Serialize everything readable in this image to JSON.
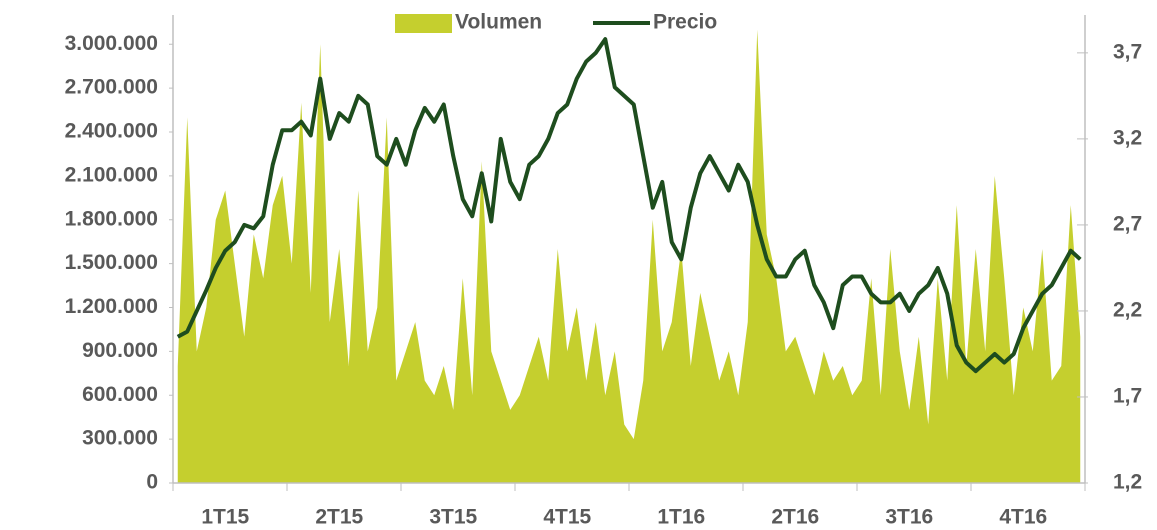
{
  "chart_data": {
    "type": "area-line",
    "categories": [
      null,
      null,
      null,
      null,
      null,
      null,
      "1T15",
      null,
      null,
      null,
      null,
      null,
      null,
      null,
      null,
      null,
      null,
      null,
      "2T15",
      null,
      null,
      null,
      null,
      null,
      null,
      null,
      null,
      null,
      null,
      null,
      "3T15",
      null,
      null,
      null,
      null,
      null,
      null,
      null,
      null,
      null,
      null,
      null,
      "4T15",
      null,
      null,
      null,
      null,
      null,
      null,
      null,
      null,
      null,
      null,
      null,
      "1T16",
      null,
      null,
      null,
      null,
      null,
      null,
      null,
      null,
      null,
      null,
      null,
      "2T16",
      null,
      null,
      null,
      null,
      null,
      null,
      null,
      null,
      null,
      null,
      null,
      "3T16",
      null,
      null,
      null,
      null,
      null,
      null,
      null,
      null,
      null,
      null,
      null,
      "4T16",
      null,
      null,
      null,
      null,
      null
    ],
    "series": [
      {
        "name": "Volumen",
        "color": "#c5cf2e",
        "values": [
          800000,
          2500000,
          900000,
          1200000,
          1800000,
          2000000,
          1500000,
          1000000,
          1700000,
          1400000,
          1900000,
          2100000,
          1500000,
          2600000,
          1300000,
          3000000,
          1100000,
          1600000,
          800000,
          2000000,
          900000,
          1200000,
          2500000,
          700000,
          900000,
          1100000,
          700000,
          600000,
          800000,
          500000,
          1400000,
          600000,
          2200000,
          900000,
          700000,
          500000,
          600000,
          800000,
          1000000,
          700000,
          1600000,
          900000,
          1200000,
          700000,
          1100000,
          600000,
          900000,
          400000,
          300000,
          700000,
          1800000,
          900000,
          1100000,
          1600000,
          800000,
          1300000,
          1000000,
          700000,
          900000,
          600000,
          1100000,
          3100000,
          1700000,
          1400000,
          900000,
          1000000,
          800000,
          600000,
          900000,
          700000,
          800000,
          600000,
          700000,
          1400000,
          600000,
          1600000,
          900000,
          500000,
          1000000,
          400000,
          1400000,
          700000,
          1900000,
          800000,
          1600000,
          900000,
          2100000,
          1400000,
          600000,
          1200000,
          900000,
          1600000,
          700000,
          800000,
          1900000,
          1000000
        ]
      },
      {
        "name": "Precio",
        "color": "#1e4d1e",
        "axis": "y2",
        "values": [
          2.05,
          2.08,
          2.2,
          2.32,
          2.45,
          2.55,
          2.6,
          2.7,
          2.68,
          2.75,
          3.05,
          3.25,
          3.25,
          3.3,
          3.22,
          3.55,
          3.2,
          3.35,
          3.3,
          3.45,
          3.4,
          3.1,
          3.05,
          3.2,
          3.05,
          3.25,
          3.38,
          3.3,
          3.4,
          3.1,
          2.85,
          2.75,
          3.0,
          2.72,
          3.2,
          2.95,
          2.85,
          3.05,
          3.1,
          3.2,
          3.35,
          3.4,
          3.55,
          3.65,
          3.7,
          3.78,
          3.5,
          3.45,
          3.4,
          3.1,
          2.8,
          2.95,
          2.6,
          2.5,
          2.8,
          3.0,
          3.1,
          3.0,
          2.9,
          3.05,
          2.95,
          2.7,
          2.5,
          2.4,
          2.4,
          2.5,
          2.55,
          2.35,
          2.25,
          2.1,
          2.35,
          2.4,
          2.4,
          2.3,
          2.25,
          2.25,
          2.3,
          2.2,
          2.3,
          2.35,
          2.45,
          2.3,
          2.0,
          1.9,
          1.85,
          1.9,
          1.95,
          1.9,
          1.95,
          2.1,
          2.2,
          2.3,
          2.35,
          2.45,
          2.55,
          2.5
        ]
      }
    ],
    "ylim": [
      0,
      3200000
    ],
    "yticks": [
      0,
      {
        "value": 300000,
        "label": "300.000"
      },
      {
        "value": 600000,
        "label": "600.000"
      },
      {
        "value": 900000,
        "label": "900.000"
      },
      {
        "value": 1200000,
        "label": "1.200.000"
      },
      {
        "value": 1500000,
        "label": "1.500.000"
      },
      {
        "value": 1800000,
        "label": "1.800.000"
      },
      {
        "value": 2100000,
        "label": "2.100.000"
      },
      {
        "value": 2400000,
        "label": "2.400.000"
      },
      {
        "value": 2700000,
        "label": "2.700.000"
      },
      {
        "value": 3000000,
        "label": "3.000.000"
      }
    ],
    "y2lim": [
      1.2,
      3.92
    ],
    "y2ticks": [
      {
        "value": 1.2,
        "label": "1,2"
      },
      {
        "value": 1.7,
        "label": "1,7"
      },
      {
        "value": 2.2,
        "label": "2,2"
      },
      {
        "value": 2.7,
        "label": "2,7"
      },
      {
        "value": 3.2,
        "label": "3,2"
      },
      {
        "value": 3.7,
        "label": "3,7"
      }
    ],
    "legend": "top"
  }
}
